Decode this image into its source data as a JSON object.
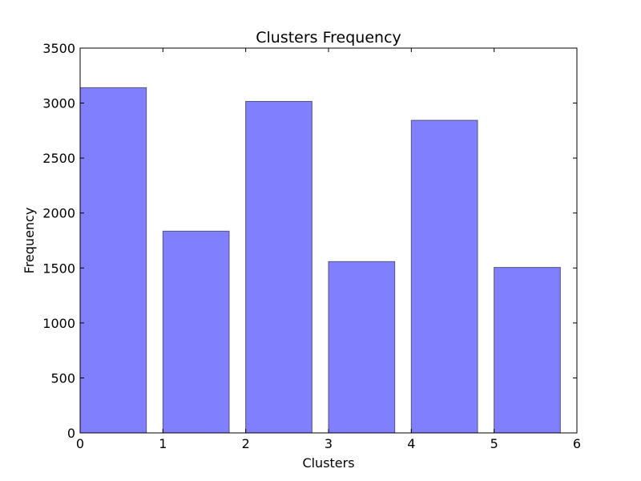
{
  "chart_data": {
    "type": "bar",
    "title": "Clusters Frequency",
    "xlabel": "Clusters",
    "ylabel": "Frequency",
    "xlim": [
      0,
      6
    ],
    "ylim": [
      0,
      3500
    ],
    "x_ticks": [
      0,
      1,
      2,
      3,
      4,
      5,
      6
    ],
    "y_ticks": [
      0,
      500,
      1000,
      1500,
      2000,
      2500,
      3000,
      3500
    ],
    "bar_width": 0.8,
    "bar_align": "edge",
    "x": [
      0,
      1,
      2,
      3,
      4,
      5
    ],
    "values": [
      3140,
      1835,
      3015,
      1558,
      2843,
      1505
    ],
    "bar_color": "#8080ff",
    "bar_edge_color": "#555577",
    "grid": false,
    "legend": "none"
  }
}
